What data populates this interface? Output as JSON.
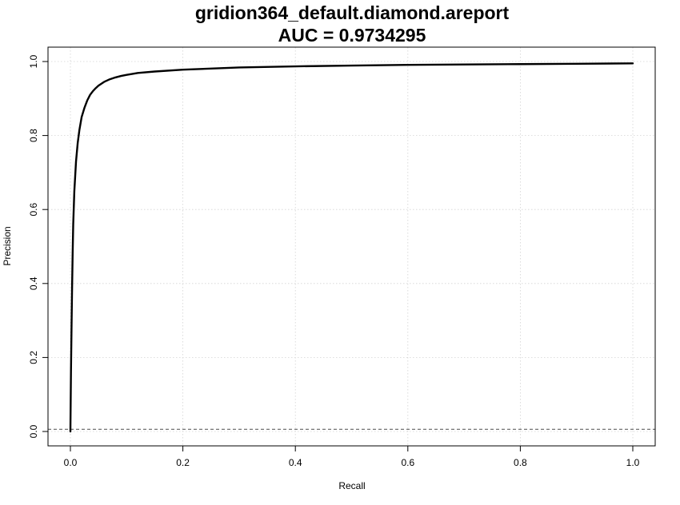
{
  "chart_data": {
    "type": "line",
    "title": "gridion364_default.diamond.areport",
    "subtitle": "AUC = 0.9734295",
    "xlabel": "Recall",
    "ylabel": "Precision",
    "xlim": [
      0,
      1
    ],
    "ylim": [
      0,
      1
    ],
    "grid": true,
    "x_ticks": [
      0.0,
      0.2,
      0.4,
      0.6,
      0.8,
      1.0
    ],
    "y_ticks": [
      0.0,
      0.2,
      0.4,
      0.6,
      0.8,
      1.0
    ],
    "x_tick_labels": [
      "0.0",
      "0.2",
      "0.4",
      "0.6",
      "0.8",
      "1.0"
    ],
    "y_tick_labels": [
      "0.0",
      "0.2",
      "0.4",
      "0.6",
      "0.8",
      "1.0"
    ],
    "baseline_y": 0.006,
    "series": [
      {
        "x": [
          0.0,
          0.001,
          0.002,
          0.003,
          0.004,
          0.005,
          0.007,
          0.01,
          0.013,
          0.016,
          0.02,
          0.025,
          0.03,
          0.035,
          0.04,
          0.045,
          0.05,
          0.06,
          0.07,
          0.08,
          0.09,
          0.1,
          0.12,
          0.15,
          0.2,
          0.25,
          0.3,
          0.4,
          0.5,
          0.6,
          0.7,
          0.8,
          0.9,
          1.0
        ],
        "y": [
          0.0,
          0.16,
          0.28,
          0.39,
          0.48,
          0.56,
          0.65,
          0.73,
          0.78,
          0.815,
          0.85,
          0.875,
          0.895,
          0.91,
          0.92,
          0.928,
          0.935,
          0.945,
          0.952,
          0.957,
          0.961,
          0.964,
          0.969,
          0.973,
          0.978,
          0.981,
          0.984,
          0.987,
          0.989,
          0.991,
          0.992,
          0.993,
          0.994,
          0.995
        ],
        "color": "#000000"
      }
    ]
  }
}
